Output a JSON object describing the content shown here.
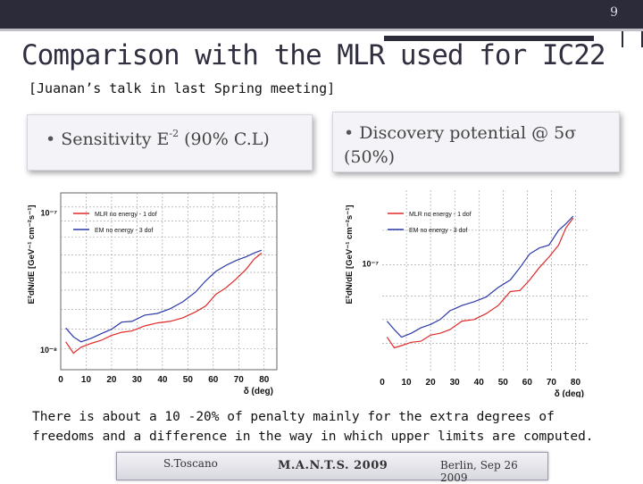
{
  "slide": {
    "number": "9",
    "title": "Comparison with the MLR used for IC22",
    "subtitle": "[Juanan’s talk in last Spring meeting]",
    "box_left": {
      "bullet": "•",
      "text": "Sensitivity E",
      "sup": "-2",
      "text_after": " (90% C.L)"
    },
    "box_right": {
      "bullet": "•",
      "text": "Discovery potential @ 5σ (50%)"
    },
    "note": "There is about a 10 -20% of penalty mainly for the extra degrees of freedoms and a difference in the way in which upper limits are computed.",
    "footer": {
      "left": "S.Toscano",
      "center": "M.A.N.T.S. 2009",
      "right": "Berlin, Sep 26 2009"
    }
  },
  "colors": {
    "red": "#e02a2a",
    "blue": "#2b3aa8",
    "dark": "#2b2b3a"
  },
  "chart_data": [
    {
      "type": "line",
      "ylabel": "E²dN/dE [GeV⁻¹ cm⁻²s⁻¹]",
      "xlabel": "δ (deg)",
      "xticks": [
        "0",
        "10",
        "20",
        "30",
        "40",
        "50",
        "60",
        "70",
        "80"
      ],
      "yticks": [
        "10⁻⁷",
        "10⁻⁸"
      ],
      "ylog": true,
      "grid": true,
      "legend_position": "top-left",
      "series": [
        {
          "name": "MLR no energy - 1 dof",
          "color": "#e02a2a",
          "x": [
            2,
            5,
            8,
            12,
            16,
            20,
            24,
            28,
            33,
            38,
            43,
            48,
            53,
            57,
            61,
            65,
            69,
            73,
            76,
            79
          ],
          "y": [
            1.15e-08,
            9.5e-09,
            1.05e-08,
            1.12e-08,
            1.18e-08,
            1.28e-08,
            1.35e-08,
            1.38e-08,
            1.5e-08,
            1.58e-08,
            1.62e-08,
            1.72e-08,
            1.9e-08,
            2.1e-08,
            2.55e-08,
            2.85e-08,
            3.3e-08,
            3.9e-08,
            4.6e-08,
            5.1e-08
          ]
        },
        {
          "name": "EM no energy - 3 dof",
          "color": "#2b3aa8",
          "x": [
            2,
            5,
            8,
            12,
            16,
            20,
            24,
            28,
            33,
            38,
            43,
            48,
            53,
            57,
            61,
            65,
            69,
            73,
            76,
            79
          ],
          "y": [
            1.45e-08,
            1.25e-08,
            1.15e-08,
            1.22e-08,
            1.32e-08,
            1.42e-08,
            1.6e-08,
            1.62e-08,
            1.8e-08,
            1.85e-08,
            2e-08,
            2.25e-08,
            2.65e-08,
            3.2e-08,
            3.75e-08,
            4.15e-08,
            4.5e-08,
            4.8e-08,
            5.1e-08,
            5.35e-08
          ]
        }
      ]
    },
    {
      "type": "line",
      "ylabel": "E²dN/dE [GeV⁻¹ cm⁻²s⁻¹]",
      "xlabel": "δ (deg)",
      "xticks": [
        "0",
        "10",
        "20",
        "30",
        "40",
        "50",
        "60",
        "70",
        "80"
      ],
      "yticks": [
        "10⁻⁷"
      ],
      "ylog": true,
      "grid": true,
      "legend_position": "top-left",
      "series": [
        {
          "name": "MLR no energy - 1 dof",
          "color": "#e02a2a",
          "x": [
            2,
            5,
            8,
            12,
            16,
            20,
            24,
            28,
            33,
            38,
            43,
            48,
            53,
            57,
            61,
            65,
            69,
            73,
            76,
            79
          ],
          "y": [
            3.6e-08,
            3.1e-08,
            3.2e-08,
            3.35e-08,
            3.4e-08,
            3.7e-08,
            3.8e-08,
            4e-08,
            4.5e-08,
            4.6e-08,
            5e-08,
            5.6e-08,
            6.8e-08,
            6.9e-08,
            8e-08,
            9.5e-08,
            1.1e-07,
            1.3e-07,
            1.65e-07,
            1.9e-07
          ]
        },
        {
          "name": "EM no energy - 3 dof",
          "color": "#2b3aa8",
          "x": [
            2,
            5,
            8,
            12,
            16,
            20,
            24,
            28,
            33,
            38,
            43,
            48,
            53,
            57,
            61,
            65,
            69,
            73,
            76,
            79
          ],
          "y": [
            4.5e-08,
            4e-08,
            3.6e-08,
            3.8e-08,
            4.1e-08,
            4.3e-08,
            4.6e-08,
            5.2e-08,
            5.6e-08,
            5.9e-08,
            6.3e-08,
            7.2e-08,
            8e-08,
            9.5e-08,
            1.15e-07,
            1.25e-07,
            1.3e-07,
            1.6e-07,
            1.75e-07,
            1.95e-07
          ]
        }
      ]
    }
  ]
}
